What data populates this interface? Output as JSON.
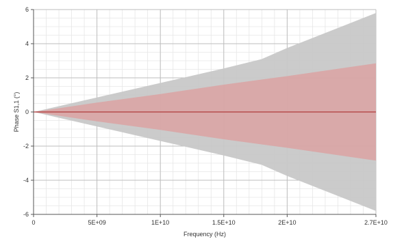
{
  "chart_data": {
    "type": "area",
    "xlabel": "Frequency (Hz)",
    "ylabel": "Phase S1,1 (°)",
    "xlim": [
      0,
      27000000000
    ],
    "ylim": [
      -6,
      6
    ],
    "x_ticks": [
      0,
      5000000000,
      10000000000,
      15000000000,
      20000000000,
      27000000000
    ],
    "x_tick_labels": [
      "0",
      "5E+09",
      "1E+10",
      "1.5E+10",
      "2E+10",
      "2.7E+10"
    ],
    "y_ticks": [
      -6,
      -4,
      -2,
      0,
      2,
      4,
      6
    ],
    "y_tick_labels": [
      "-6",
      "-4",
      "-2",
      "0",
      "2",
      "4",
      "6"
    ],
    "grid": true,
    "series": [
      {
        "type": "band",
        "x": [
          0,
          5000000000,
          10000000000,
          15000000000,
          18000000000,
          20000000000,
          27000000000
        ],
        "upper": [
          0,
          0.85,
          1.7,
          2.55,
          3.1,
          3.75,
          5.8
        ],
        "lower": [
          0,
          -0.85,
          -1.7,
          -2.55,
          -3.1,
          -3.75,
          -5.8
        ],
        "color": "#c8c8c8"
      },
      {
        "type": "band",
        "x": [
          0,
          5000000000,
          10000000000,
          15000000000,
          20000000000,
          27000000000
        ],
        "upper": [
          0,
          0.55,
          1.05,
          1.6,
          2.1,
          2.85
        ],
        "lower": [
          0,
          -0.55,
          -1.05,
          -1.6,
          -2.1,
          -2.85
        ],
        "color": "#d9a7a7"
      },
      {
        "type": "line",
        "x": [
          0,
          27000000000
        ],
        "y": [
          0,
          0
        ],
        "color": "#b03a3a"
      }
    ]
  }
}
